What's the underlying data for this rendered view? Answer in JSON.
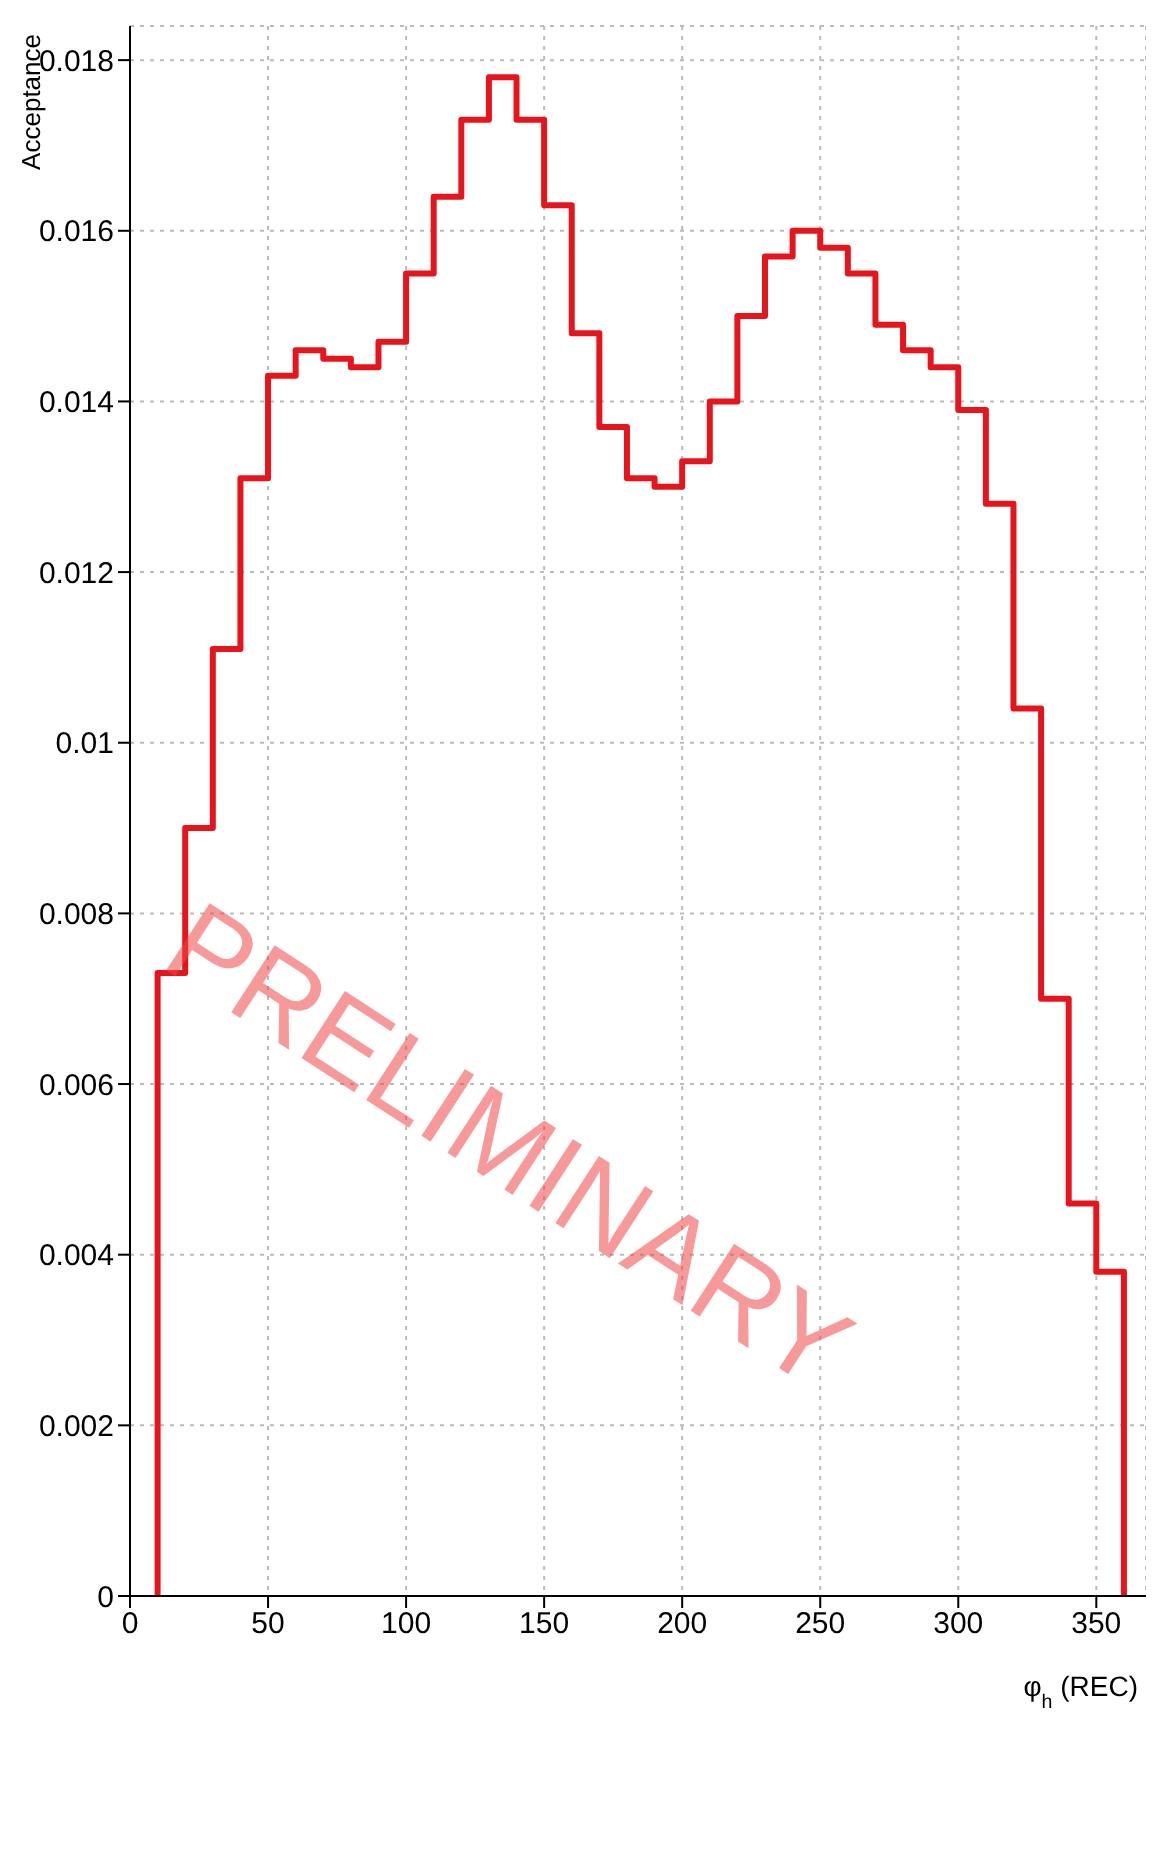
{
  "chart_data": {
    "type": "histogram",
    "xlabel": "φ$_{h}$ (REC)",
    "ylabel": "Acceptance",
    "color": "#e8141c",
    "bins": [
      10,
      20,
      30,
      40,
      50,
      60,
      70,
      80,
      90,
      100,
      110,
      120,
      130,
      140,
      150,
      160,
      170,
      180,
      190,
      200,
      210,
      220,
      230,
      240,
      250,
      260,
      270,
      280,
      290,
      300,
      310,
      320,
      330,
      340,
      350,
      360
    ],
    "values": [
      0.0073,
      0.009,
      0.0111,
      0.0131,
      0.0143,
      0.0146,
      0.0145,
      0.0144,
      0.0147,
      0.0155,
      0.0164,
      0.0173,
      0.0178,
      0.0173,
      0.0163,
      0.0148,
      0.0137,
      0.0131,
      0.013,
      0.0133,
      0.014,
      0.015,
      0.0157,
      0.016,
      0.0158,
      0.0155,
      0.0149,
      0.0146,
      0.0144,
      0.0139,
      0.0128,
      0.0104,
      0.007,
      0.0046,
      0.0038
    ],
    "xlim": [
      0,
      368
    ],
    "xticks": [
      0,
      50,
      100,
      150,
      200,
      250,
      300,
      350
    ],
    "ylim": [
      0,
      0.0184
    ],
    "yticks": [
      0,
      0.002,
      0.004,
      0.006,
      0.008,
      0.01,
      0.012,
      0.014,
      0.016,
      0.018
    ],
    "grid": true,
    "annotations": [
      "PRELIMINARY"
    ]
  }
}
